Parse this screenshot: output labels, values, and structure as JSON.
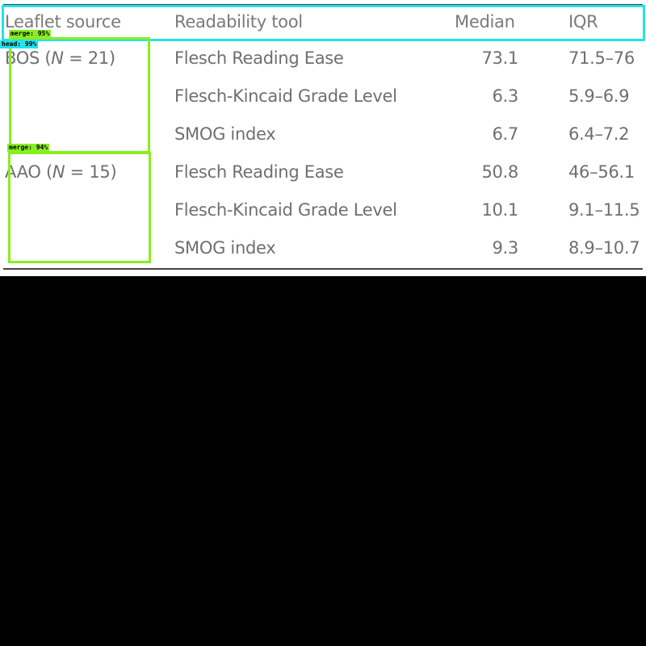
{
  "table": {
    "headers": {
      "source": "Leaflet source",
      "tool": "Readability tool",
      "median": "Median",
      "iqr": "IQR"
    },
    "groups": [
      {
        "name": "BOS (",
        "n_symbol": "N",
        "n_value": " = 21)",
        "rows": [
          {
            "tool": "Flesch Reading Ease",
            "median": "73.1",
            "iqr": "71.5–76"
          },
          {
            "tool": "Flesch-Kincaid Grade Level",
            "median": "6.3",
            "iqr": "5.9–6.9"
          },
          {
            "tool": "SMOG index",
            "median": "6.7",
            "iqr": "6.4–7.2"
          }
        ]
      },
      {
        "name": "AAO (",
        "n_symbol": "N",
        "n_value": " = 15)",
        "rows": [
          {
            "tool": "Flesch Reading Ease",
            "median": "50.8",
            "iqr": "46–56.1"
          },
          {
            "tool": "Flesch-Kincaid Grade Level",
            "median": "10.1",
            "iqr": "9.1–11.5"
          },
          {
            "tool": "SMOG index",
            "median": "9.3",
            "iqr": "8.9–10.7"
          }
        ]
      }
    ]
  },
  "annotations": [
    {
      "label": "head: 99%",
      "kind": "head"
    },
    {
      "label": "merge: 95%",
      "kind": "merge"
    },
    {
      "label": "merge: 94%",
      "kind": "merge"
    }
  ],
  "colors": {
    "head_box": "#22e3ee",
    "merge_box": "#88ee22",
    "text": "#6f6f6f",
    "background": "#000000"
  }
}
